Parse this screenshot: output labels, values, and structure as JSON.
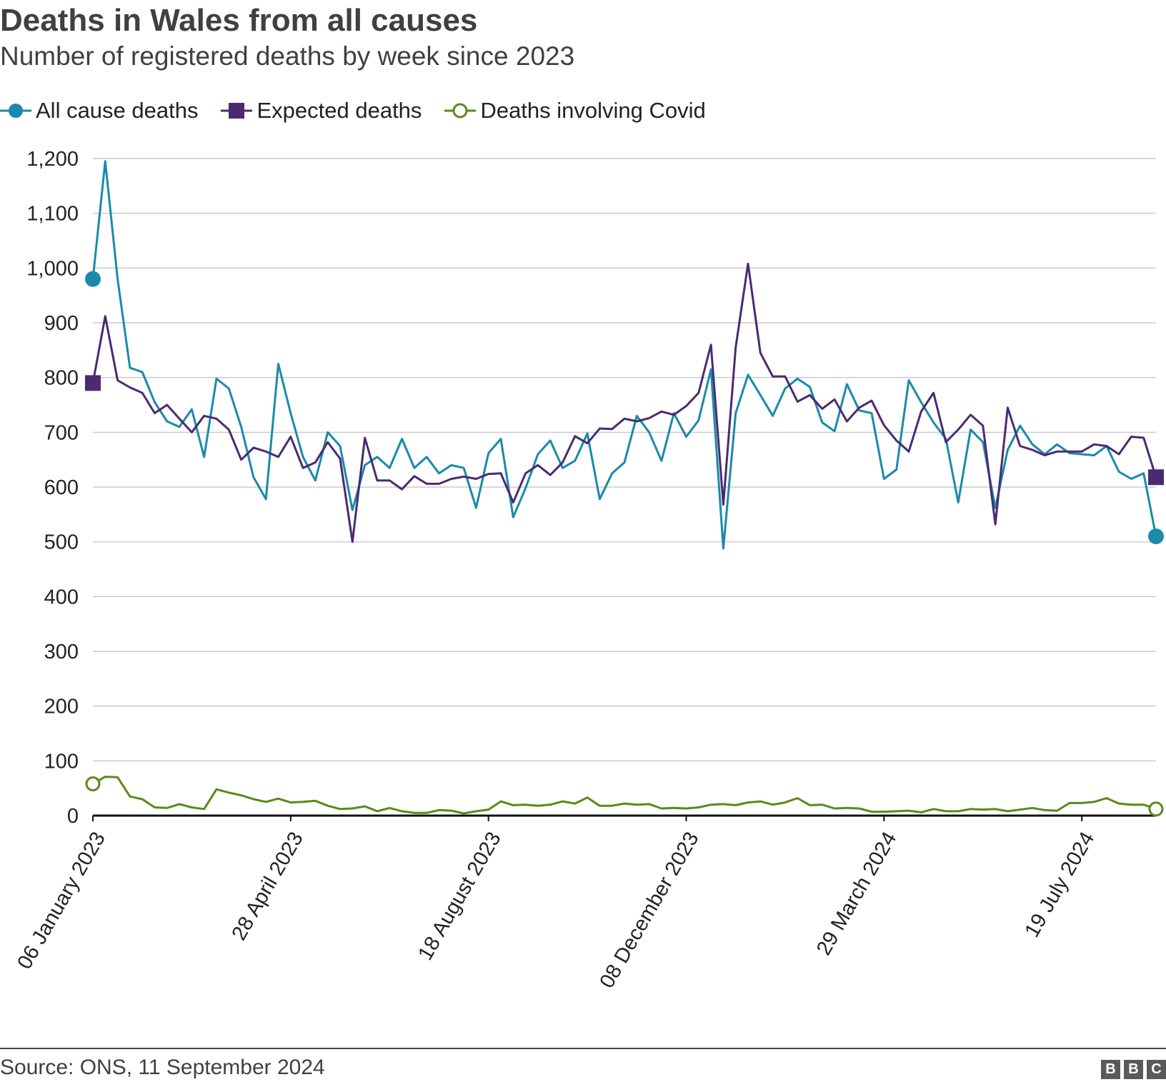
{
  "chart_data": {
    "type": "line",
    "title": "Deaths in Wales from all causes",
    "subtitle": "Number of registered deaths by week since 2023",
    "source": "Source: ONS, 11 September 2024",
    "brand": [
      "B",
      "B",
      "C"
    ],
    "x_start": "06 January 2023",
    "x_tick_labels": [
      "06 January 2023",
      "28 April 2023",
      "18 August 2023",
      "08 December 2023",
      "29 March 2024",
      "19 July 2024"
    ],
    "x_tick_index": [
      0,
      16,
      32,
      48,
      64,
      80
    ],
    "ylim": [
      0,
      1200
    ],
    "y_ticks": [
      0,
      100,
      200,
      300,
      400,
      500,
      600,
      700,
      800,
      900,
      1000,
      1100,
      1200
    ],
    "y_tick_labels": [
      "0",
      "100",
      "200",
      "300",
      "400",
      "500",
      "600",
      "700",
      "800",
      "900",
      "1,000",
      "1,100",
      "1,200"
    ],
    "grid": true,
    "legend_position": "top-left",
    "series": [
      {
        "name": "All cause deaths",
        "color": "#1a8aaa",
        "marker": "circle-filled",
        "values": [
          980,
          1195,
          980,
          818,
          810,
          755,
          720,
          710,
          742,
          655,
          798,
          780,
          710,
          618,
          578,
          825,
          735,
          655,
          612,
          700,
          675,
          558,
          640,
          655,
          635,
          688,
          635,
          655,
          625,
          640,
          635,
          562,
          662,
          688,
          545,
          598,
          660,
          685,
          635,
          648,
          698,
          578,
          625,
          645,
          730,
          700,
          648,
          735,
          692,
          722,
          815,
          488,
          735,
          805,
          768,
          730,
          780,
          798,
          783,
          718,
          702,
          788,
          740,
          735,
          615,
          632,
          795,
          755,
          718,
          688,
          572,
          705,
          682,
          562,
          668,
          712,
          678,
          660,
          678,
          662,
          660,
          658,
          675,
          628,
          615,
          625,
          510
        ]
      },
      {
        "name": "Expected deaths",
        "color": "#4b2a72",
        "marker": "square-filled",
        "values": [
          790,
          912,
          795,
          782,
          772,
          735,
          750,
          725,
          700,
          730,
          725,
          705,
          650,
          672,
          665,
          655,
          692,
          635,
          645,
          682,
          652,
          500,
          690,
          612,
          612,
          596,
          620,
          606,
          606,
          615,
          619,
          615,
          624,
          625,
          572,
          625,
          640,
          622,
          645,
          693,
          680,
          707,
          706,
          725,
          720,
          726,
          738,
          732,
          748,
          772,
          860,
          568,
          855,
          1008,
          845,
          802,
          802,
          756,
          768,
          743,
          760,
          720,
          745,
          758,
          713,
          685,
          665,
          738,
          772,
          682,
          705,
          732,
          712,
          532,
          745,
          675,
          668,
          658,
          665,
          665,
          665,
          678,
          675,
          660,
          692,
          690,
          618
        ]
      },
      {
        "name": "Deaths involving Covid",
        "color": "#5a8a1a",
        "marker": "circle-open",
        "values": [
          58,
          71,
          70,
          35,
          30,
          15,
          14,
          21,
          15,
          12,
          48,
          42,
          37,
          30,
          25,
          31,
          24,
          25,
          27,
          18,
          12,
          13,
          17,
          8,
          14,
          8,
          5,
          5,
          10,
          9,
          4,
          8,
          11,
          26,
          19,
          20,
          18,
          20,
          26,
          22,
          33,
          18,
          18,
          22,
          20,
          21,
          13,
          14,
          13,
          15,
          20,
          21,
          19,
          24,
          26,
          20,
          24,
          32,
          19,
          20,
          13,
          14,
          13,
          7,
          7,
          8,
          9,
          6,
          12,
          8,
          8,
          12,
          11,
          12,
          8,
          11,
          14,
          10,
          9,
          23,
          23,
          25,
          32,
          22,
          20,
          20,
          12
        ]
      }
    ]
  }
}
